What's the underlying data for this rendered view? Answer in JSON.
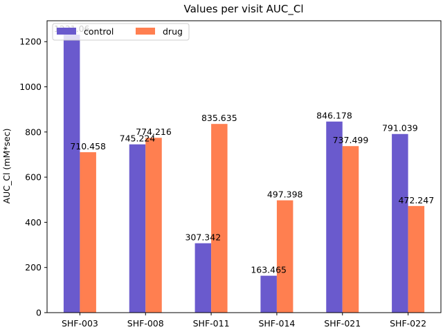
{
  "chart_data": {
    "type": "bar",
    "title": "Values per visit AUC_Cl",
    "xlabel": "",
    "ylabel": "AUC_Cl (mM*sec)",
    "categories": [
      "SHF-003",
      "SHF-008",
      "SHF-011",
      "SHF-014",
      "SHF-021",
      "SHF-022"
    ],
    "series": [
      {
        "name": "control",
        "color": "#6a5acd",
        "values": [
          1231.06,
          745.224,
          307.342,
          163.465,
          846.178,
          791.039
        ],
        "labels": [
          "1231.06",
          "745.224",
          "307.342",
          "163.465",
          "846.178",
          "791.039"
        ]
      },
      {
        "name": "drug",
        "color": "#ff7f50",
        "values": [
          710.458,
          774.216,
          835.635,
          497.398,
          737.499,
          472.247
        ],
        "labels": [
          "710.458",
          "774.216",
          "835.635",
          "497.398",
          "737.499",
          "472.247"
        ]
      }
    ],
    "ylim": [
      0,
      1292.6
    ],
    "yticks": [
      0,
      200,
      400,
      600,
      800,
      1000,
      1200
    ],
    "grid": false,
    "legend_position": "top-left"
  }
}
